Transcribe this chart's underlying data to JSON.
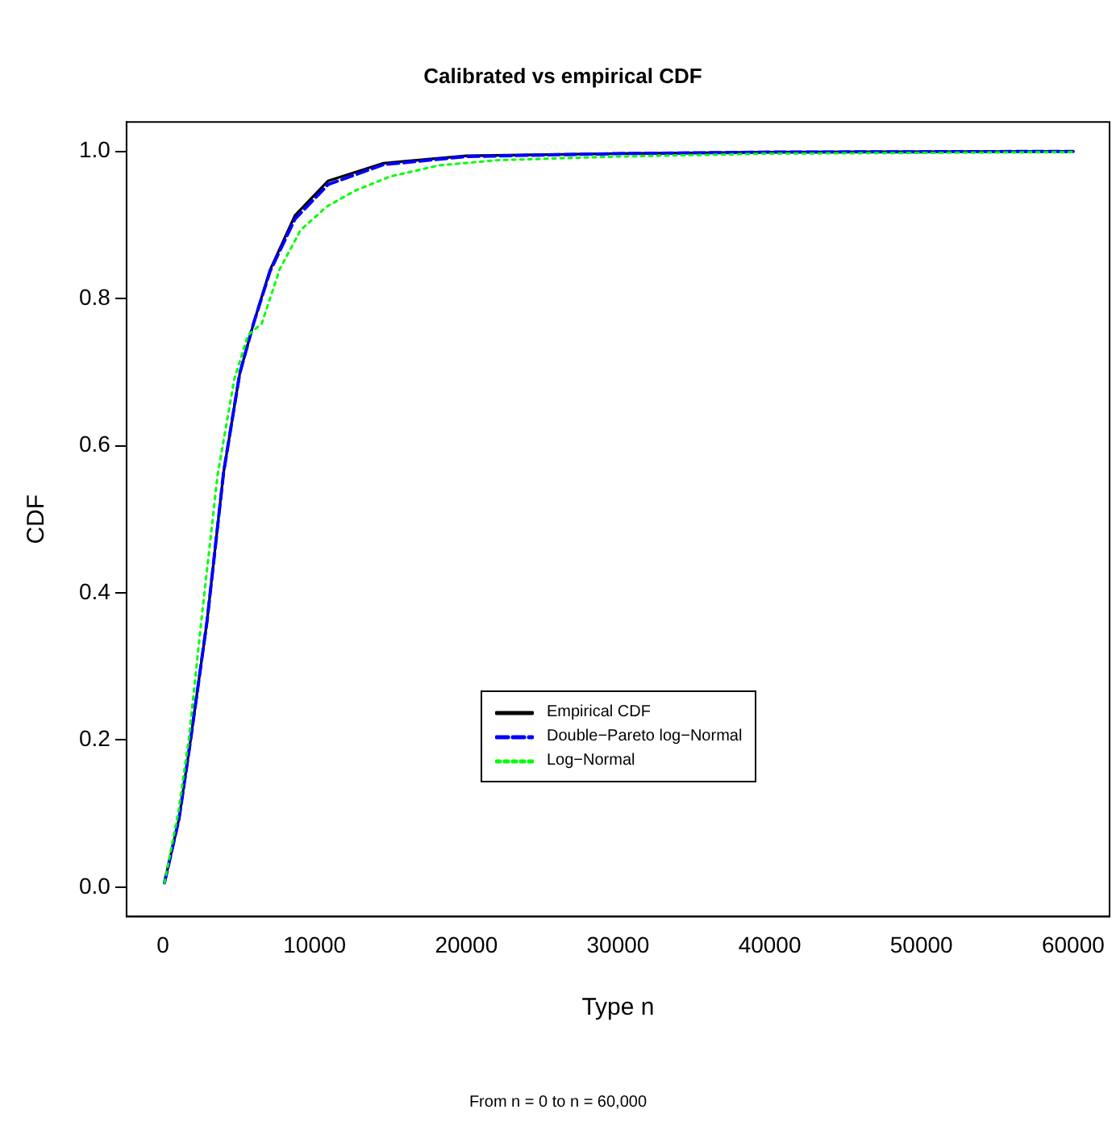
{
  "chart_data": {
    "type": "line",
    "title": "Calibrated vs empirical CDF",
    "xlabel": "Type n",
    "ylabel": "CDF",
    "annotations": [
      "From n = 0 to n = 60,000"
    ],
    "xlim": [
      -2400,
      62400
    ],
    "ylim": [
      -0.04,
      1.04
    ],
    "xticks": [
      0,
      10000,
      20000,
      30000,
      40000,
      50000,
      60000
    ],
    "yticks": [
      {
        "value": 0,
        "label": "0.0"
      },
      {
        "value": 0.2,
        "label": "0.2"
      },
      {
        "value": 0.4,
        "label": "0.4"
      },
      {
        "value": 0.6,
        "label": "0.6"
      },
      {
        "value": 0.8,
        "label": "0.8"
      },
      {
        "value": 1,
        "label": "1.0"
      }
    ],
    "grid": false,
    "legend": "bottom",
    "marker": "none",
    "series": [
      {
        "name": "Empirical CDF",
        "color": "#000000",
        "line_style": "solid",
        "x": [
          100,
          1060,
          1780,
          2910,
          4000,
          5060,
          5970,
          7060,
          8700,
          10890,
          14540,
          20000,
          30000,
          40000,
          60000
        ],
        "values": [
          0.006,
          0.093,
          0.194,
          0.362,
          0.564,
          0.698,
          0.766,
          0.839,
          0.913,
          0.96,
          0.984,
          0.994,
          0.997,
          0.999,
          1.0
        ]
      },
      {
        "name": "Double−Pareto log−Normal",
        "color": "#0000ff",
        "line_style": "dashed",
        "x": [
          100,
          1060,
          1780,
          2910,
          4000,
          5060,
          5970,
          7060,
          8700,
          10890,
          14540,
          20000,
          30000,
          40000,
          60000
        ],
        "values": [
          0.006,
          0.093,
          0.194,
          0.362,
          0.564,
          0.698,
          0.766,
          0.837,
          0.908,
          0.955,
          0.982,
          0.993,
          0.997,
          0.999,
          1.0
        ]
      },
      {
        "name": "Log−Normal",
        "color": "#00ff00",
        "line_style": "dotted",
        "x": [
          100,
          1000,
          1700,
          2530,
          3600,
          4700,
          5600,
          6510,
          7700,
          9070,
          10800,
          12700,
          15000,
          18200,
          22000,
          30000,
          40000,
          60000
        ],
        "values": [
          0.006,
          0.1,
          0.2,
          0.362,
          0.56,
          0.69,
          0.75,
          0.766,
          0.84,
          0.893,
          0.925,
          0.947,
          0.966,
          0.981,
          0.988,
          0.993,
          0.997,
          0.999
        ]
      }
    ]
  }
}
